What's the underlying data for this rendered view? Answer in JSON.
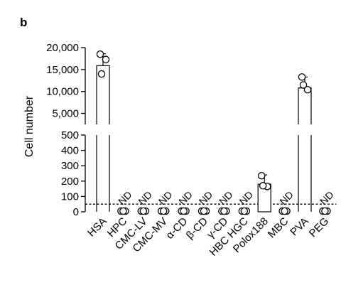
{
  "panel_label": "b",
  "chart_data": {
    "type": "bar",
    "ylabel": "Cell number",
    "xlabel": "",
    "y_axis_broken": true,
    "upper_axis": {
      "range": [
        2500,
        20000
      ],
      "ticks": [
        5000,
        10000,
        15000,
        20000
      ],
      "tick_labels": [
        "5,000",
        "10,000",
        "15,000",
        "20,000"
      ]
    },
    "lower_axis": {
      "range": [
        0,
        500
      ],
      "ticks": [
        0,
        100,
        200,
        300,
        400,
        500
      ],
      "tick_labels": [
        "0",
        "100",
        "200",
        "300",
        "400",
        "500"
      ]
    },
    "detection_limit": 50,
    "nd_label": "ND",
    "categories": [
      {
        "name": "HSA",
        "value": 15900,
        "error": 2700,
        "points": [
          18500,
          17300,
          14000
        ],
        "nd": false
      },
      {
        "name": "HPC",
        "value": 0,
        "error": 0,
        "points": [
          0,
          0,
          0
        ],
        "nd": true
      },
      {
        "name": "CMC-LV",
        "value": 0,
        "error": 0,
        "points": [
          0,
          0,
          0
        ],
        "nd": true
      },
      {
        "name": "CMC-MV",
        "value": 0,
        "error": 0,
        "points": [
          0,
          0,
          0
        ],
        "nd": true
      },
      {
        "name": "α-CD",
        "value": 0,
        "error": 0,
        "points": [
          0,
          0,
          0
        ],
        "nd": true
      },
      {
        "name": "β-CD",
        "value": 0,
        "error": 0,
        "points": [
          0,
          0,
          0
        ],
        "nd": true
      },
      {
        "name": "γ-CD",
        "value": 0,
        "error": 0,
        "points": [
          0,
          0,
          0
        ],
        "nd": true
      },
      {
        "name": "HBC HGC",
        "value": 0,
        "error": 0,
        "points": [
          0,
          0,
          0
        ],
        "nd": true
      },
      {
        "name": "Polox188",
        "value": 180,
        "error": 60,
        "points": [
          235,
          165,
          170
        ],
        "nd": false
      },
      {
        "name": "MBC",
        "value": 0,
        "error": 0,
        "points": [
          0,
          0,
          0
        ],
        "nd": true
      },
      {
        "name": "PVA",
        "value": 10800,
        "error": 2500,
        "points": [
          13300,
          10400,
          11500
        ],
        "nd": false
      },
      {
        "name": "PEG",
        "value": 0,
        "error": 0,
        "points": [
          0,
          0,
          0
        ],
        "nd": true
      }
    ]
  }
}
